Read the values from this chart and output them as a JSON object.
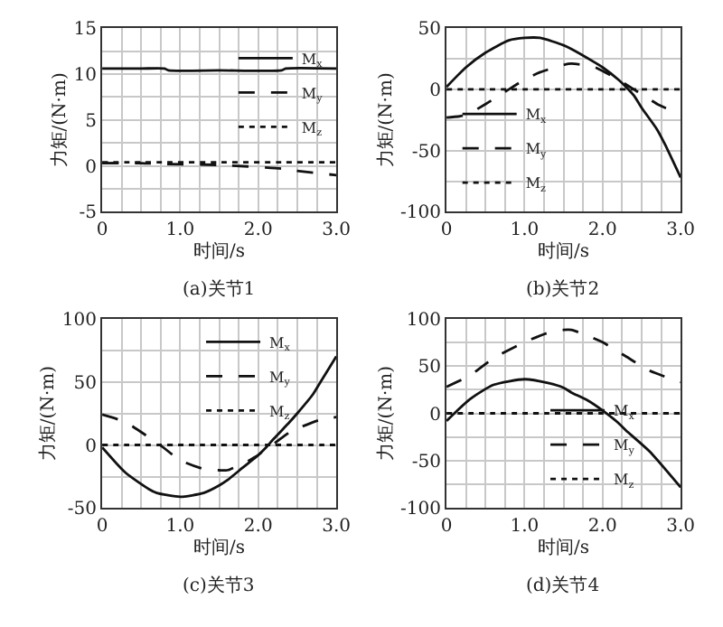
{
  "chart_data": [
    {
      "type": "line",
      "title": "(a)关节1",
      "xlabel": "时间/s",
      "ylabel": "力矩/(N·m)",
      "legend": "right",
      "grid": true,
      "marker": "none",
      "xlim": [
        0,
        3
      ],
      "xticks": [
        0,
        {
          "value": 0.25,
          "label": null
        },
        {
          "value": 0.5,
          "label": null
        },
        {
          "value": 0.75,
          "label": null
        },
        {
          "value": 1,
          "label": "1.0"
        },
        {
          "value": 1.25,
          "label": null
        },
        {
          "value": 1.5,
          "label": null
        },
        {
          "value": 1.75,
          "label": null
        },
        {
          "value": 2,
          "label": "2.0"
        },
        {
          "value": 2.25,
          "label": null
        },
        {
          "value": 2.5,
          "label": null
        },
        {
          "value": 2.75,
          "label": null
        },
        {
          "value": 3,
          "label": "3.0"
        }
      ],
      "ylim": [
        -5,
        15
      ],
      "yticks": [
        -5,
        {
          "value": -2.5,
          "label": null
        },
        0,
        {
          "value": 2.5,
          "label": null
        },
        5,
        {
          "value": 7.5,
          "label": null
        },
        10,
        {
          "value": 12.5,
          "label": null
        },
        15
      ],
      "x": [
        0,
        0.5,
        0.8,
        0.85,
        1.5,
        2.3,
        2.35,
        3.0
      ],
      "series": [
        {
          "name": "M$_{x}$",
          "color": "#111111",
          "line_style": "solid",
          "values": [
            10.6,
            10.6,
            10.6,
            10.4,
            10.4,
            10.4,
            10.6,
            10.6
          ]
        },
        {
          "name": "M$_{y}$",
          "color": "#111111",
          "line_style": "dashed",
          "values": [
            0.3,
            0.3,
            0.2,
            0.2,
            0.1,
            -0.3,
            -0.4,
            -1.0
          ]
        },
        {
          "name": "M$_{z}$",
          "color": "#111111",
          "line_style": "dotted",
          "values": [
            0.4,
            0.4,
            0.4,
            0.4,
            0.4,
            0.4,
            0.4,
            0.4
          ]
        }
      ]
    },
    {
      "type": "line",
      "title": "(b)关节2",
      "xlabel": "时间/s",
      "ylabel": "力矩/(N·m)",
      "legend": "bottom left",
      "grid": true,
      "marker": "none",
      "xlim": [
        0,
        3
      ],
      "xticks": [
        0,
        {
          "value": 0.25,
          "label": null
        },
        {
          "value": 0.5,
          "label": null
        },
        {
          "value": 0.75,
          "label": null
        },
        {
          "value": 1,
          "label": "1.0"
        },
        {
          "value": 1.25,
          "label": null
        },
        {
          "value": 1.5,
          "label": null
        },
        {
          "value": 1.75,
          "label": null
        },
        {
          "value": 2,
          "label": "2.0"
        },
        {
          "value": 2.25,
          "label": null
        },
        {
          "value": 2.5,
          "label": null
        },
        {
          "value": 2.75,
          "label": null
        },
        {
          "value": 3,
          "label": "3.0"
        }
      ],
      "ylim": [
        -100,
        50
      ],
      "yticks": [
        -100,
        {
          "value": -75,
          "label": null
        },
        -50,
        {
          "value": -25,
          "label": null
        },
        0,
        {
          "value": 25,
          "label": null
        },
        50
      ],
      "x": [
        0,
        0.25,
        0.5,
        0.8,
        1.0,
        1.2,
        1.5,
        1.6,
        1.9,
        2.0,
        2.2,
        2.3,
        2.4,
        2.5,
        2.7,
        2.8,
        3.0
      ],
      "series": [
        {
          "name": "M$_{x}$",
          "color": "#111111",
          "line_style": "solid",
          "values": [
            2,
            18,
            30,
            40,
            42,
            42,
            36,
            33,
            22,
            18,
            8,
            2,
            -5,
            -15,
            -33,
            -45,
            -72
          ]
        },
        {
          "name": "M$_{y}$",
          "color": "#111111",
          "line_style": "dashed",
          "values": [
            -23,
            -21,
            -12,
            0,
            8,
            14,
            20,
            21,
            18,
            15,
            8,
            4,
            0,
            -4,
            -12,
            -15,
            -20
          ]
        },
        {
          "name": "M$_{z}$",
          "color": "#111111",
          "line_style": "dotted",
          "values": [
            0,
            0,
            0,
            0,
            0,
            0,
            0,
            0,
            0,
            0,
            0,
            0,
            0,
            0,
            0,
            0,
            0
          ]
        }
      ]
    },
    {
      "type": "line",
      "title": "(c)关节3",
      "xlabel": "时间/s",
      "ylabel": "力矩/(N·m)",
      "legend": "top right",
      "grid": true,
      "marker": "none",
      "xlim": [
        0,
        3
      ],
      "xticks": [
        0,
        {
          "value": 0.25,
          "label": null
        },
        {
          "value": 0.5,
          "label": null
        },
        {
          "value": 0.75,
          "label": null
        },
        {
          "value": 1,
          "label": "1.0"
        },
        {
          "value": 1.25,
          "label": null
        },
        {
          "value": 1.5,
          "label": null
        },
        {
          "value": 1.75,
          "label": null
        },
        {
          "value": 2,
          "label": "2.0"
        },
        {
          "value": 2.25,
          "label": null
        },
        {
          "value": 2.5,
          "label": null
        },
        {
          "value": 2.75,
          "label": null
        },
        {
          "value": 3,
          "label": "3.0"
        }
      ],
      "ylim": [
        -50,
        100
      ],
      "yticks": [
        -50,
        {
          "value": -25,
          "label": null
        },
        0,
        {
          "value": 25,
          "label": null
        },
        50,
        {
          "value": 75,
          "label": null
        },
        100
      ],
      "x": [
        0,
        0.3,
        0.6,
        0.7,
        1.0,
        1.3,
        1.5,
        1.6,
        1.8,
        2.0,
        2.1,
        2.2,
        2.4,
        2.5,
        2.7,
        2.8,
        3.0
      ],
      "series": [
        {
          "name": "M$_{x}$",
          "color": "#111111",
          "line_style": "solid",
          "values": [
            -2,
            -22,
            -35,
            -38,
            -41,
            -38,
            -32,
            -28,
            -18,
            -8,
            -2,
            5,
            18,
            25,
            40,
            50,
            70
          ]
        },
        {
          "name": "M$_{y}$",
          "color": "#111111",
          "line_style": "dashed",
          "values": [
            24,
            18,
            6,
            2,
            -12,
            -19,
            -20,
            -20,
            -15,
            -8,
            -3,
            1,
            10,
            13,
            18,
            20,
            22
          ]
        },
        {
          "name": "M$_{z}$",
          "color": "#111111",
          "line_style": "dotted",
          "values": [
            0,
            0,
            0,
            0,
            0,
            0,
            0,
            0,
            0,
            0,
            0,
            0,
            0,
            0,
            0,
            0,
            0
          ]
        }
      ]
    },
    {
      "type": "line",
      "title": "(d)关节4",
      "xlabel": "时间/s",
      "ylabel": "力矩/(N·m)",
      "legend": "bottom right",
      "grid": true,
      "marker": "none",
      "xlim": [
        0,
        3
      ],
      "xticks": [
        0,
        {
          "value": 0.25,
          "label": null
        },
        {
          "value": 0.5,
          "label": null
        },
        {
          "value": 0.75,
          "label": null
        },
        {
          "value": 1,
          "label": "1.0"
        },
        {
          "value": 1.25,
          "label": null
        },
        {
          "value": 1.5,
          "label": null
        },
        {
          "value": 1.75,
          "label": null
        },
        {
          "value": 2,
          "label": "2.0"
        },
        {
          "value": 2.25,
          "label": null
        },
        {
          "value": 2.5,
          "label": null
        },
        {
          "value": 2.75,
          "label": null
        },
        {
          "value": 3,
          "label": "3.0"
        }
      ],
      "ylim": [
        -100,
        100
      ],
      "yticks": [
        -100,
        {
          "value": -75,
          "label": null
        },
        -50,
        {
          "value": -25,
          "label": null
        },
        0,
        {
          "value": 25,
          "label": null
        },
        50,
        {
          "value": 75,
          "label": null
        },
        100
      ],
      "x": [
        0,
        0.3,
        0.6,
        1.0,
        1.3,
        1.5,
        1.6,
        1.8,
        2.0,
        2.2,
        2.3,
        2.6,
        3.0
      ],
      "series": [
        {
          "name": "M$_{x}$",
          "color": "#111111",
          "line_style": "solid",
          "values": [
            -8,
            15,
            30,
            36,
            32,
            27,
            22,
            14,
            3,
            -10,
            -18,
            -40,
            -78
          ]
        },
        {
          "name": "M$_{y}$",
          "color": "#111111",
          "line_style": "dashed",
          "values": [
            28,
            40,
            58,
            75,
            85,
            88,
            88,
            82,
            75,
            65,
            60,
            45,
            33
          ]
        },
        {
          "name": "M$_{z}$",
          "color": "#111111",
          "line_style": "dotted",
          "values": [
            0,
            0,
            0,
            0,
            0,
            0,
            0,
            0,
            0,
            0,
            0,
            0,
            0
          ]
        }
      ]
    }
  ]
}
